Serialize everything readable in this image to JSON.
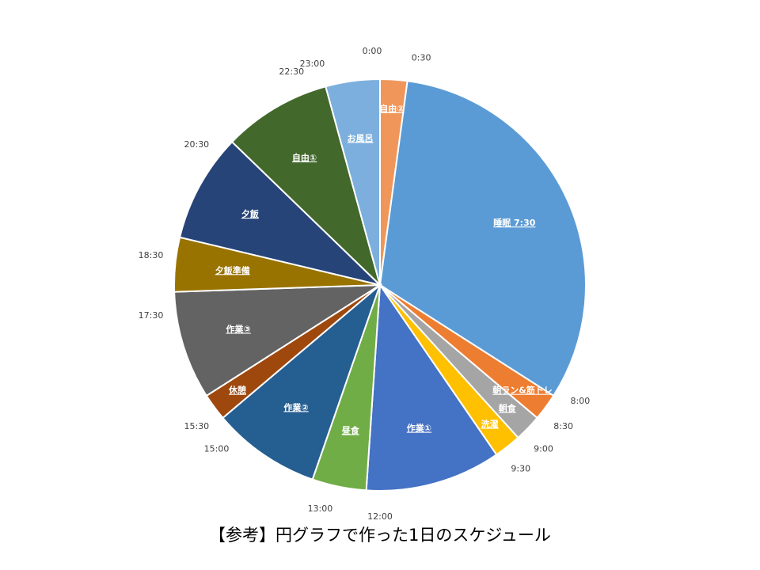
{
  "caption": "【参考】円グラフで作った1日のスケジュール",
  "chart_data": {
    "type": "pie",
    "unit": "hours",
    "start_time": "0:00",
    "slices": [
      {
        "label": "自由②",
        "hours": 0.5,
        "color": "#F0965A"
      },
      {
        "label": "睡眠 7:30",
        "hours": 7.5,
        "color": "#5B9BD5"
      },
      {
        "label": "朝ラン&筋トレ",
        "hours": 0.5,
        "color": "#ED7D31"
      },
      {
        "label": "朝食",
        "hours": 0.5,
        "color": "#A5A5A5"
      },
      {
        "label": "洗濯",
        "hours": 0.5,
        "color": "#FFC000"
      },
      {
        "label": "作業①",
        "hours": 2.5,
        "color": "#4472C4"
      },
      {
        "label": "昼食",
        "hours": 1.0,
        "color": "#70AD47"
      },
      {
        "label": "作業②",
        "hours": 2.0,
        "color": "#255E91"
      },
      {
        "label": "休憩",
        "hours": 0.5,
        "color": "#9E480E"
      },
      {
        "label": "作業③",
        "hours": 2.0,
        "color": "#636363"
      },
      {
        "label": "夕飯準備",
        "hours": 1.0,
        "color": "#997300"
      },
      {
        "label": "夕飯",
        "hours": 2.0,
        "color": "#264478"
      },
      {
        "label": "自由①",
        "hours": 2.0,
        "color": "#43682B"
      },
      {
        "label": "お風呂",
        "hours": 1.0,
        "color": "#7CAFDD"
      }
    ],
    "time_labels": [
      "0:00",
      "0:30",
      "8:00",
      "8:30",
      "9:00",
      "9:30",
      "12:00",
      "13:00",
      "15:00",
      "15:30",
      "17:30",
      "18:30",
      "20:30",
      "22:30",
      "23:00"
    ]
  }
}
